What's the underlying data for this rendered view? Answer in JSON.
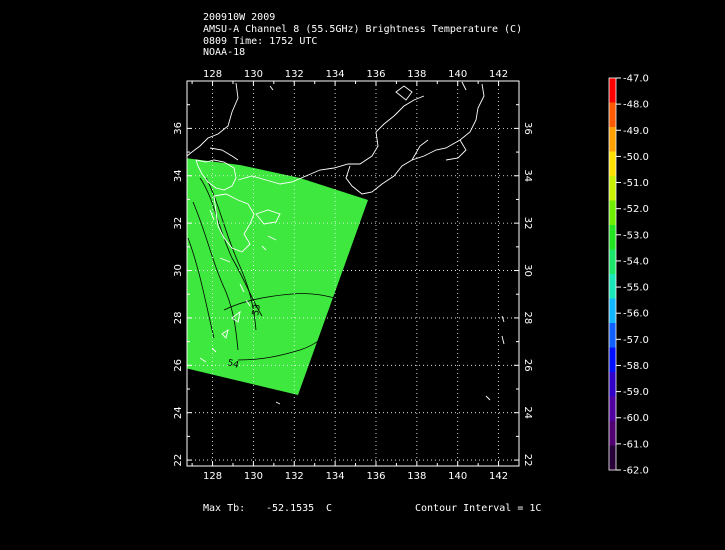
{
  "header": {
    "line1": "200910W 2009",
    "line2": "AMSU-A Channel 8 (55.5GHz) Brightness Temperature (C)",
    "line3": "0809 Time: 1752 UTC",
    "line4": "NOAA-18"
  },
  "map": {
    "lon_range": [
      126.75,
      143.0
    ],
    "lat_range": [
      21.75,
      38.0
    ],
    "lon_ticks": [
      "128",
      "130",
      "132",
      "134",
      "136",
      "138",
      "140",
      "142"
    ],
    "lat_ticks": [
      "22",
      "24",
      "26",
      "28",
      "30",
      "32",
      "34",
      "36"
    ],
    "swath_color": "#3ee83e",
    "coast_color": "#ffffff",
    "contour_labels": [
      "53",
      "54"
    ]
  },
  "colorbar": {
    "labels": [
      "-47.0",
      "-48.0",
      "-49.0",
      "-50.0",
      "-51.0",
      "-52.0",
      "-53.0",
      "-54.0",
      "-55.0",
      "-56.0",
      "-57.0",
      "-58.0",
      "-59.0",
      "-60.0",
      "-61.0",
      "-62.0"
    ],
    "colors": [
      "#ff0000",
      "#ff5a00",
      "#ffa000",
      "#ffe000",
      "#c8f000",
      "#6ef000",
      "#22e622",
      "#1ae86a",
      "#18e8b8",
      "#12b8ff",
      "#1060ff",
      "#0010ff",
      "#3000c8",
      "#5000a0",
      "#500070",
      "#280038"
    ]
  },
  "footer": {
    "max_label": "Max Tb:",
    "max_value": "-52.1535",
    "max_unit": "C",
    "contour": "Contour Interval = 1C"
  }
}
